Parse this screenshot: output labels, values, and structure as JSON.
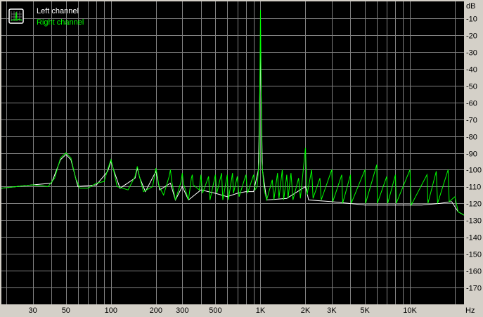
{
  "chart_data": {
    "type": "line",
    "title": "",
    "xlabel": "Hz",
    "ylabel": "dB",
    "xscale": "log",
    "xlim": [
      18.5,
      23000
    ],
    "ylim": [
      -180,
      0
    ],
    "grid": true,
    "legend_position": "top-left",
    "background_color": "#000000",
    "grid_color": "#808080",
    "x_tick_labels": [
      {
        "value": 30,
        "label": "30"
      },
      {
        "value": 50,
        "label": "50"
      },
      {
        "value": 100,
        "label": "100"
      },
      {
        "value": 200,
        "label": "200"
      },
      {
        "value": 300,
        "label": "300"
      },
      {
        "value": 500,
        "label": "500"
      },
      {
        "value": 1000,
        "label": "1K"
      },
      {
        "value": 2000,
        "label": "2K"
      },
      {
        "value": 3000,
        "label": "3K"
      },
      {
        "value": 5000,
        "label": "5K"
      },
      {
        "value": 10000,
        "label": "10K"
      }
    ],
    "x_grid": [
      20,
      30,
      40,
      50,
      60,
      70,
      80,
      90,
      100,
      200,
      300,
      400,
      500,
      600,
      700,
      800,
      900,
      1000,
      2000,
      3000,
      4000,
      5000,
      6000,
      7000,
      8000,
      9000,
      10000,
      20000
    ],
    "y_ticks": [
      -10,
      -20,
      -30,
      -40,
      -50,
      -60,
      -70,
      -80,
      -90,
      -100,
      -110,
      -120,
      -130,
      -140,
      -150,
      -160,
      -170
    ],
    "series": [
      {
        "name": "Left channel",
        "color": "#ffffff",
        "points": [
          [
            18.5,
            -111
          ],
          [
            30,
            -109
          ],
          [
            40,
            -108
          ],
          [
            46,
            -94
          ],
          [
            50,
            -91
          ],
          [
            54,
            -94
          ],
          [
            60,
            -110
          ],
          [
            80,
            -109
          ],
          [
            95,
            -101
          ],
          [
            100,
            -95
          ],
          [
            105,
            -101
          ],
          [
            115,
            -111
          ],
          [
            145,
            -105
          ],
          [
            150,
            -99
          ],
          [
            156,
            -105
          ],
          [
            170,
            -113
          ],
          [
            200,
            -101
          ],
          [
            212,
            -112
          ],
          [
            250,
            -108
          ],
          [
            270,
            -118
          ],
          [
            300,
            -110
          ],
          [
            330,
            -118
          ],
          [
            400,
            -112
          ],
          [
            500,
            -114
          ],
          [
            600,
            -116
          ],
          [
            700,
            -114
          ],
          [
            800,
            -113
          ],
          [
            900,
            -113
          ],
          [
            970,
            -100
          ],
          [
            1000,
            -30
          ],
          [
            1030,
            -100
          ],
          [
            1100,
            -118
          ],
          [
            1500,
            -117
          ],
          [
            2000,
            -110
          ],
          [
            2100,
            -118
          ],
          [
            3000,
            -119
          ],
          [
            5000,
            -121
          ],
          [
            8000,
            -121
          ],
          [
            12000,
            -121
          ],
          [
            16000,
            -120
          ],
          [
            19000,
            -119
          ],
          [
            21000,
            -125
          ],
          [
            23000,
            -127
          ]
        ]
      },
      {
        "name": "Right channel",
        "color": "#00ff00",
        "points": [
          [
            18.5,
            -111
          ],
          [
            30,
            -109
          ],
          [
            38,
            -110
          ],
          [
            42,
            -105
          ],
          [
            46,
            -93
          ],
          [
            50,
            -90
          ],
          [
            54,
            -93
          ],
          [
            58,
            -105
          ],
          [
            62,
            -111
          ],
          [
            70,
            -111
          ],
          [
            80,
            -108
          ],
          [
            90,
            -107
          ],
          [
            95,
            -100
          ],
          [
            100,
            -94
          ],
          [
            104,
            -100
          ],
          [
            110,
            -110
          ],
          [
            130,
            -112
          ],
          [
            145,
            -104
          ],
          [
            150,
            -98
          ],
          [
            155,
            -104
          ],
          [
            165,
            -113
          ],
          [
            190,
            -110
          ],
          [
            200,
            -99
          ],
          [
            210,
            -110
          ],
          [
            225,
            -115
          ],
          [
            245,
            -104
          ],
          [
            250,
            -100
          ],
          [
            255,
            -107
          ],
          [
            270,
            -118
          ],
          [
            295,
            -107
          ],
          [
            300,
            -102
          ],
          [
            305,
            -108
          ],
          [
            330,
            -118
          ],
          [
            345,
            -105
          ],
          [
            350,
            -103
          ],
          [
            355,
            -109
          ],
          [
            390,
            -112
          ],
          [
            400,
            -103
          ],
          [
            410,
            -114
          ],
          [
            450,
            -104
          ],
          [
            460,
            -118
          ],
          [
            500,
            -103
          ],
          [
            510,
            -114
          ],
          [
            550,
            -102
          ],
          [
            560,
            -118
          ],
          [
            600,
            -103
          ],
          [
            610,
            -118
          ],
          [
            650,
            -102
          ],
          [
            660,
            -114
          ],
          [
            700,
            -104
          ],
          [
            720,
            -116
          ],
          [
            800,
            -103
          ],
          [
            820,
            -114
          ],
          [
            900,
            -103
          ],
          [
            920,
            -112
          ],
          [
            950,
            -110
          ],
          [
            980,
            -95
          ],
          [
            1000,
            -5
          ],
          [
            1020,
            -95
          ],
          [
            1060,
            -112
          ],
          [
            1100,
            -118
          ],
          [
            1200,
            -106
          ],
          [
            1230,
            -118
          ],
          [
            1300,
            -102
          ],
          [
            1330,
            -117
          ],
          [
            1400,
            -100
          ],
          [
            1430,
            -118
          ],
          [
            1500,
            -103
          ],
          [
            1530,
            -117
          ],
          [
            1600,
            -102
          ],
          [
            1650,
            -118
          ],
          [
            1800,
            -105
          ],
          [
            1850,
            -117
          ],
          [
            2000,
            -87
          ],
          [
            2050,
            -115
          ],
          [
            2200,
            -100
          ],
          [
            2250,
            -117
          ],
          [
            2500,
            -105
          ],
          [
            2550,
            -118
          ],
          [
            3000,
            -100
          ],
          [
            3050,
            -119
          ],
          [
            3500,
            -103
          ],
          [
            3550,
            -120
          ],
          [
            4000,
            -103
          ],
          [
            4050,
            -120
          ],
          [
            5000,
            -100
          ],
          [
            5050,
            -120
          ],
          [
            6000,
            -97
          ],
          [
            6050,
            -120
          ],
          [
            7000,
            -104
          ],
          [
            7100,
            -120
          ],
          [
            8000,
            -103
          ],
          [
            8100,
            -120
          ],
          [
            10000,
            -100
          ],
          [
            10200,
            -121
          ],
          [
            13000,
            -103
          ],
          [
            13200,
            -120
          ],
          [
            15000,
            -101
          ],
          [
            15300,
            -120
          ],
          [
            18000,
            -100
          ],
          [
            18300,
            -119
          ],
          [
            20000,
            -116
          ],
          [
            21000,
            -125
          ],
          [
            23000,
            -127
          ]
        ]
      }
    ]
  }
}
